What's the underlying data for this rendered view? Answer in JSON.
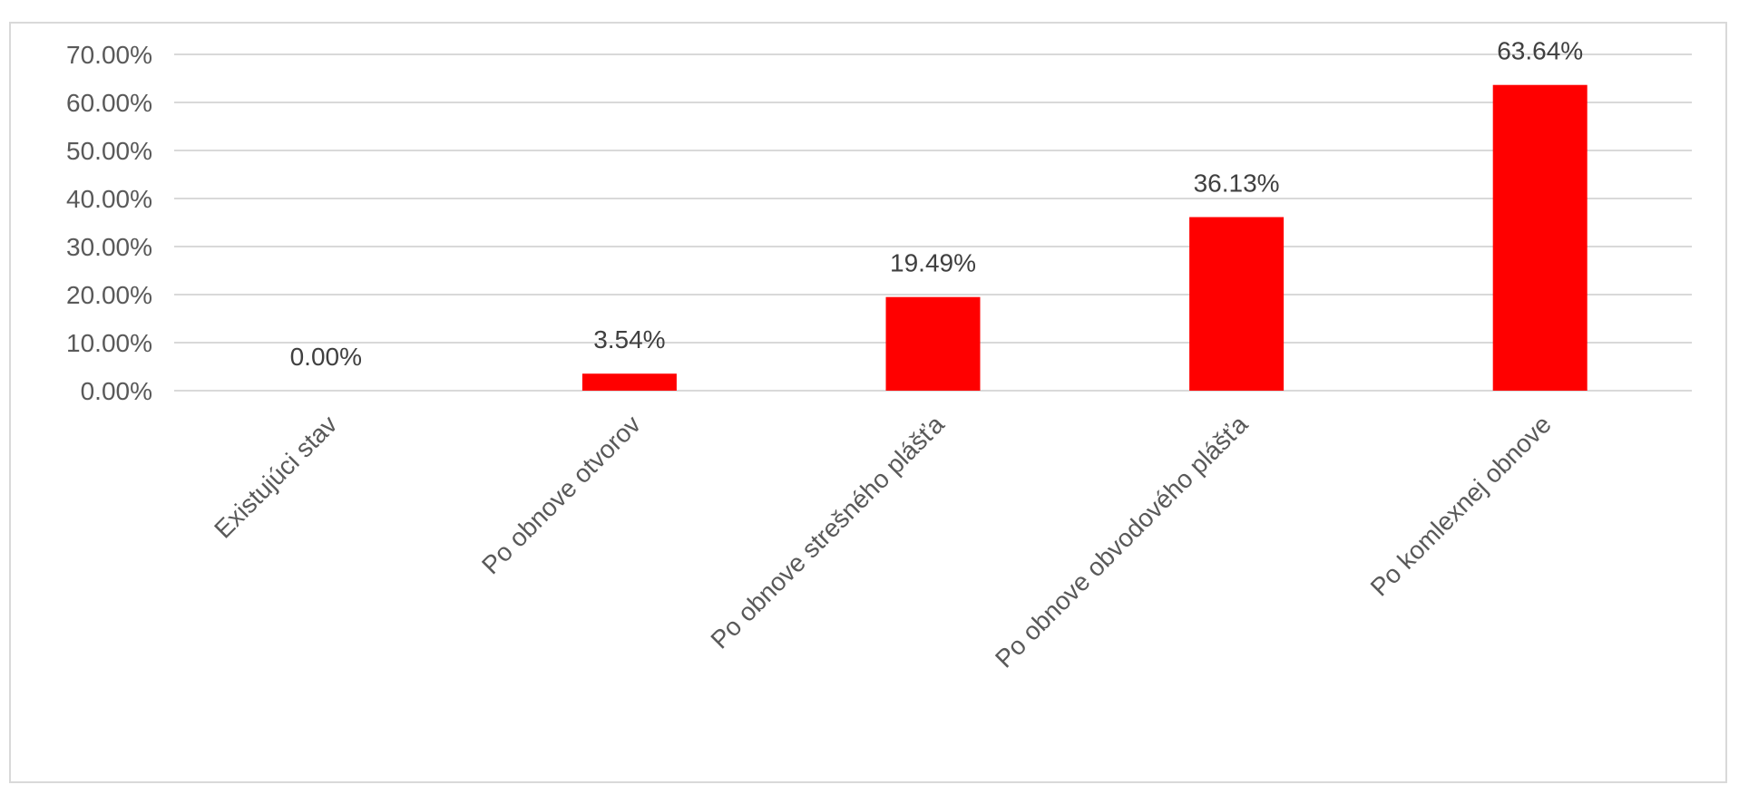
{
  "chart_data": {
    "type": "bar",
    "categories": [
      "Existujúci stav",
      "Po obnove otvorov",
      "Po obnove strešného plášťa",
      "Po obnove obvodového plášťa",
      "Po komlexnej obnove"
    ],
    "values": [
      0.0,
      3.54,
      19.49,
      36.13,
      63.64
    ],
    "data_labels": [
      "0.00%",
      "3.54%",
      "19.49%",
      "36.13%",
      "63.64%"
    ],
    "y_ticks": [
      0,
      10,
      20,
      30,
      40,
      50,
      60,
      70
    ],
    "y_tick_labels": [
      "0.00%",
      "10.00%",
      "20.00%",
      "30.00%",
      "40.00%",
      "50.00%",
      "60.00%",
      "70.00%"
    ],
    "ylim": [
      0,
      70
    ],
    "grid": true,
    "legend": "none",
    "bar_color": "#ff0000",
    "title": "",
    "xlabel": "",
    "ylabel": ""
  }
}
